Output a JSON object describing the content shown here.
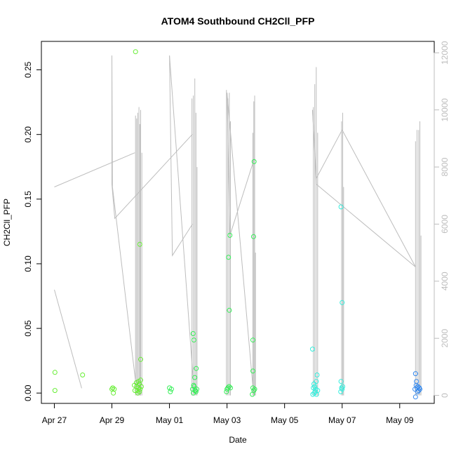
{
  "chart_data": {
    "type": "scatter",
    "title": "ATOM4 Southbound CH2Cll_PFP",
    "xlabel": "Date",
    "ylabel": "CH2Cll_PFP",
    "x_ticks": [
      "Apr 27",
      "Apr 29",
      "May 01",
      "May 03",
      "May 05",
      "May 07",
      "May 09"
    ],
    "x_tick_days": [
      0,
      2,
      4,
      6,
      8,
      10,
      12
    ],
    "xlim": [
      -0.45,
      13.2
    ],
    "ylim": [
      -0.008,
      0.272
    ],
    "y_ticks": [
      0.0,
      0.05,
      0.1,
      0.15,
      0.2,
      0.25
    ],
    "y_tick_labels": [
      "0.00",
      "0.05",
      "0.10",
      "0.15",
      "0.20",
      "0.25"
    ],
    "y2_ticks": [
      0,
      2000,
      4000,
      6000,
      8000,
      10000,
      12000
    ],
    "y2_tick_labels": [
      "0",
      "2000",
      "4000",
      "6000",
      "8000",
      "10000",
      "12000"
    ],
    "y2lim": [
      -280,
      12400
    ],
    "grid": false,
    "series": [
      {
        "marker": "open-circle",
        "colors": [
          "#66ee33",
          "#33ee55",
          "#33eedd",
          "#3388ee"
        ],
        "points": [
          [
            0.02,
            0.016,
            "#66ee33"
          ],
          [
            0.02,
            0.002,
            "#66ee33"
          ],
          [
            0.98,
            0.014,
            "#66ee33"
          ],
          [
            2.0,
            0.003,
            "#66ee33"
          ],
          [
            2.03,
            0.004,
            "#66ee33"
          ],
          [
            2.05,
            0.0,
            "#66ee33"
          ],
          [
            2.08,
            0.003,
            "#66ee33"
          ],
          [
            2.82,
            0.264,
            "#66ee33"
          ],
          [
            2.78,
            0.006,
            "#66ee33"
          ],
          [
            2.85,
            0.008,
            "#66ee33"
          ],
          [
            2.88,
            0.002,
            "#66ee33"
          ],
          [
            2.9,
            0.0,
            "#66ee33"
          ],
          [
            2.93,
            0.004,
            "#66ee33"
          ],
          [
            2.95,
            0.007,
            "#66ee33"
          ],
          [
            2.97,
            0.115,
            "#66ee33"
          ],
          [
            2.98,
            0.003,
            "#66ee33"
          ],
          [
            3.0,
            0.026,
            "#66ee33"
          ],
          [
            3.0,
            0.01,
            "#66ee33"
          ],
          [
            3.02,
            0.005,
            "#66ee33"
          ],
          [
            2.8,
            0.002,
            "#66ee33"
          ],
          [
            2.86,
            0.005,
            "#66ee33"
          ],
          [
            2.92,
            0.009,
            "#66ee33"
          ],
          [
            2.96,
            0.001,
            "#66ee33"
          ],
          [
            4.0,
            0.004,
            "#33ee55"
          ],
          [
            4.03,
            0.001,
            "#33ee55"
          ],
          [
            4.07,
            0.003,
            "#33ee55"
          ],
          [
            4.82,
            0.046,
            "#33ee55"
          ],
          [
            4.85,
            0.041,
            "#33ee55"
          ],
          [
            4.88,
            0.012,
            "#33ee55"
          ],
          [
            4.93,
            0.019,
            "#33ee55"
          ],
          [
            4.8,
            0.003,
            "#33ee55"
          ],
          [
            4.83,
            0.0,
            "#33ee55"
          ],
          [
            4.86,
            0.005,
            "#33ee55"
          ],
          [
            4.89,
            0.002,
            "#33ee55"
          ],
          [
            4.92,
            0.001,
            "#33ee55"
          ],
          [
            4.95,
            0.003,
            "#33ee55"
          ],
          [
            4.84,
            0.006,
            "#33ee55"
          ],
          [
            4.9,
            0.002,
            "#33ee55"
          ],
          [
            5.98,
            0.001,
            "#33ee55"
          ],
          [
            6.0,
            0.003,
            "#33ee55"
          ],
          [
            6.03,
            0.004,
            "#33ee55"
          ],
          [
            6.07,
            0.005,
            "#33ee55"
          ],
          [
            6.05,
            0.105,
            "#33ee55"
          ],
          [
            6.1,
            0.122,
            "#33ee55"
          ],
          [
            6.08,
            0.064,
            "#33ee55"
          ],
          [
            6.12,
            0.004,
            "#33ee55"
          ],
          [
            6.94,
            0.179,
            "#33ee55"
          ],
          [
            6.92,
            0.121,
            "#33ee55"
          ],
          [
            6.9,
            0.041,
            "#33ee55"
          ],
          [
            6.9,
            0.017,
            "#33ee55"
          ],
          [
            6.88,
            -0.001,
            "#33ee55"
          ],
          [
            6.9,
            0.004,
            "#33ee55"
          ],
          [
            6.93,
            0.002,
            "#33ee55"
          ],
          [
            6.96,
            0.003,
            "#33ee55"
          ],
          [
            8.97,
            0.034,
            "#33eedd"
          ],
          [
            9.0,
            0.004,
            "#33eedd"
          ],
          [
            9.03,
            0.0,
            "#33eedd"
          ],
          [
            9.05,
            0.005,
            "#33eedd"
          ],
          [
            9.08,
            0.003,
            "#33eedd"
          ],
          [
            9.1,
            0.009,
            "#33eedd"
          ],
          [
            9.13,
            0.014,
            "#33eedd"
          ],
          [
            9.15,
            0.002,
            "#33eedd"
          ],
          [
            8.98,
            -0.001,
            "#33eedd"
          ],
          [
            9.06,
            0.001,
            "#33eedd"
          ],
          [
            9.11,
            -0.001,
            "#33eedd"
          ],
          [
            9.02,
            0.007,
            "#33eedd"
          ],
          [
            9.96,
            0.144,
            "#33eedd"
          ],
          [
            10.0,
            0.07,
            "#33eedd"
          ],
          [
            9.96,
            0.009,
            "#33eedd"
          ],
          [
            9.98,
            0.004,
            "#33eedd"
          ],
          [
            9.95,
            0.001,
            "#33eedd"
          ],
          [
            10.0,
            0.003,
            "#33eedd"
          ],
          [
            10.02,
            0.005,
            "#33eedd"
          ],
          [
            12.55,
            0.015,
            "#3388ee"
          ],
          [
            12.53,
            0.003,
            "#3388ee"
          ],
          [
            12.57,
            0.006,
            "#3388ee"
          ],
          [
            12.6,
            0.004,
            "#3388ee"
          ],
          [
            12.63,
            0.005,
            "#3388ee"
          ],
          [
            12.66,
            0.002,
            "#3388ee"
          ],
          [
            12.7,
            0.003,
            "#3388ee"
          ],
          [
            12.55,
            -0.003,
            "#3388ee"
          ],
          [
            12.62,
            0.001,
            "#3388ee"
          ],
          [
            12.68,
            0.004,
            "#3388ee"
          ],
          [
            12.58,
            0.009,
            "#3388ee"
          ]
        ]
      },
      {
        "type": "line",
        "axis": "right",
        "color": "#bdbdbd",
        "points": [
          [
            0.02,
            3700
          ],
          [
            0.02,
            7300
          ],
          [
            1.8,
            8200
          ],
          [
            2.78,
            8700
          ],
          [
            2.88,
            7600
          ],
          [
            2.92,
            9600
          ],
          [
            2.95,
            3000
          ],
          [
            2.98,
            9800
          ],
          [
            3.0,
            2500
          ],
          [
            3.02,
            10000
          ],
          [
            3.05,
            9000
          ],
          [
            3.08,
            7000
          ],
          [
            3.1,
            6000
          ],
          [
            3.05,
            5500
          ],
          [
            3.0,
            5000
          ],
          [
            2.95,
            4000
          ],
          [
            2.9,
            3000
          ],
          [
            2.85,
            2000
          ],
          [
            2.8,
            1000
          ],
          [
            2.75,
            500
          ],
          [
            2.7,
            300
          ],
          [
            0.98,
            250
          ],
          [
            0.02,
            3600
          ]
        ],
        "segments": [
          [
            [
              0.0,
              7300
            ],
            [
              2.8,
              8500
            ]
          ],
          [
            [
              0.0,
              3700
            ],
            [
              0.95,
              250
            ]
          ],
          [
            [
              2.0,
              11900
            ],
            [
              2.0,
              7400
            ],
            [
              2.1,
              6200
            ],
            [
              4.8,
              9150
            ]
          ],
          [
            [
              2.0,
              11900
            ],
            [
              2.02,
              7300
            ],
            [
              2.82,
              500
            ]
          ],
          [
            [
              4.0,
              11900
            ],
            [
              4.1,
              4900
            ],
            [
              4.8,
              6000
            ]
          ],
          [
            [
              4.0,
              11900
            ],
            [
              4.85,
              200
            ]
          ],
          [
            [
              6.0,
              10600
            ],
            [
              6.1,
              5600
            ],
            [
              6.95,
              8300
            ]
          ],
          [
            [
              6.0,
              10600
            ],
            [
              6.9,
              300
            ]
          ],
          [
            [
              8.97,
              10000
            ],
            [
              9.1,
              7600
            ],
            [
              10.0,
              9300
            ]
          ],
          [
            [
              8.97,
              10000
            ],
            [
              9.1,
              7400
            ],
            [
              12.55,
              4500
            ]
          ],
          [
            [
              10.0,
              9300
            ],
            [
              12.55,
              4500
            ]
          ]
        ],
        "spikes": [
          [
            2.82,
            9800
          ],
          [
            2.86,
            9700
          ],
          [
            2.9,
            9900
          ],
          [
            2.94,
            10100
          ],
          [
            2.97,
            9500
          ],
          [
            3.0,
            10000
          ],
          [
            3.04,
            8500
          ],
          [
            4.78,
            10400
          ],
          [
            4.83,
            10500
          ],
          [
            4.88,
            11100
          ],
          [
            4.92,
            9900
          ],
          [
            4.96,
            8000
          ],
          [
            5.98,
            10700
          ],
          [
            6.03,
            10400
          ],
          [
            6.08,
            10600
          ],
          [
            6.12,
            9600
          ],
          [
            6.9,
            9200
          ],
          [
            6.93,
            10300
          ],
          [
            6.96,
            10500
          ],
          [
            6.99,
            5000
          ],
          [
            9.0,
            10100
          ],
          [
            9.05,
            10900
          ],
          [
            9.1,
            11500
          ],
          [
            9.15,
            9200
          ],
          [
            9.98,
            9600
          ],
          [
            10.02,
            9900
          ],
          [
            10.05,
            7300
          ],
          [
            12.55,
            8900
          ],
          [
            12.6,
            9300
          ],
          [
            12.66,
            9300
          ],
          [
            12.7,
            9600
          ],
          [
            12.74,
            5600
          ]
        ]
      }
    ]
  }
}
